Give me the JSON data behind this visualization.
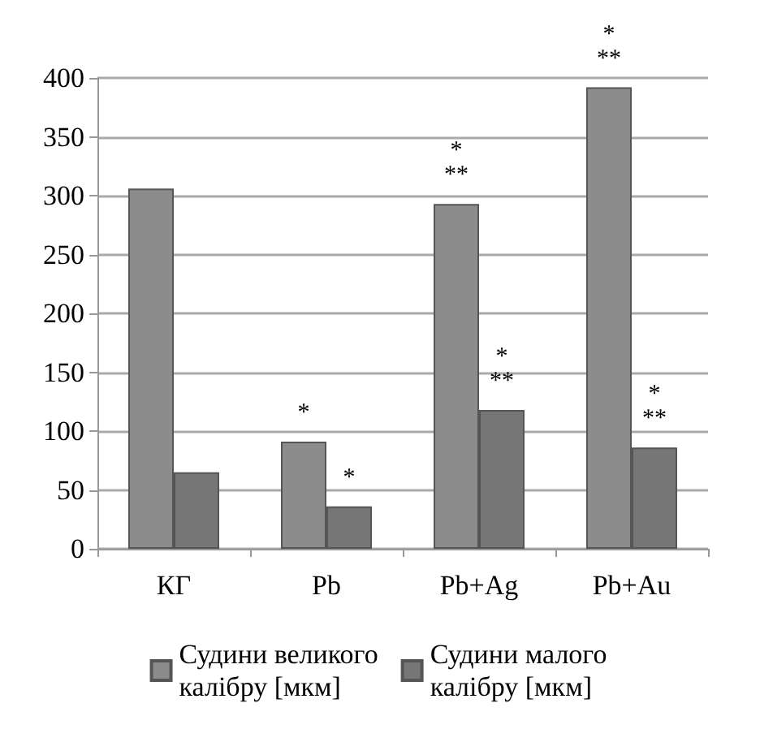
{
  "chart_data": {
    "type": "bar",
    "categories": [
      "КГ",
      "Pb",
      "Pb+Ag",
      "Pb+Au"
    ],
    "series": [
      {
        "name": "Судини великого калібру [мкм]",
        "color": "#8c8c8c",
        "values": [
          306,
          91,
          293,
          392
        ]
      },
      {
        "name": "Судини малого калібру [мкм]",
        "color": "#767676",
        "values": [
          65,
          36,
          118,
          86
        ]
      }
    ],
    "ylim": [
      0,
      400
    ],
    "yticks": [
      0,
      50,
      100,
      150,
      200,
      250,
      300,
      350,
      400
    ],
    "grid": "y",
    "legend": "bottom",
    "annotations": [
      {
        "text": "*",
        "x": "Pb",
        "y": 91
      },
      {
        "text": "*",
        "x": "Pb",
        "y": 36
      },
      {
        "text": "*\n**",
        "x": "Pb+Ag",
        "y": 293
      },
      {
        "text": "*\n**",
        "x": "Pb+Ag",
        "y": 118
      },
      {
        "text": "*\n**",
        "x": "Pb+Au",
        "y": 392
      },
      {
        "text": "*\n**",
        "x": "Pb+Au",
        "y": 86
      }
    ]
  }
}
